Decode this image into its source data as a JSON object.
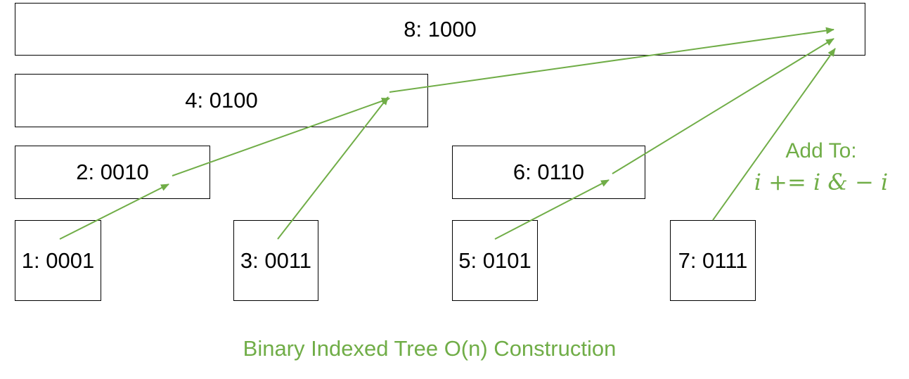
{
  "nodes": {
    "n8": "8: 1000",
    "n4": "4: 0100",
    "n2": "2: 0010",
    "n6": "6: 0110",
    "n1": "1: 0001",
    "n3": "3: 0011",
    "n5": "5: 0101",
    "n7": "7: 0111"
  },
  "rule": {
    "heading": "Add To:",
    "formula": "i +=  i & − i"
  },
  "caption": "Binary Indexed Tree O(n) Construction",
  "edges": [
    {
      "from": "1",
      "to": "2"
    },
    {
      "from": "2",
      "to": "4"
    },
    {
      "from": "3",
      "to": "4"
    },
    {
      "from": "4",
      "to": "8"
    },
    {
      "from": "5",
      "to": "6"
    },
    {
      "from": "6",
      "to": "8"
    },
    {
      "from": "7",
      "to": "8"
    }
  ],
  "colors": {
    "accent": "#70ad47",
    "border": "#000000"
  }
}
